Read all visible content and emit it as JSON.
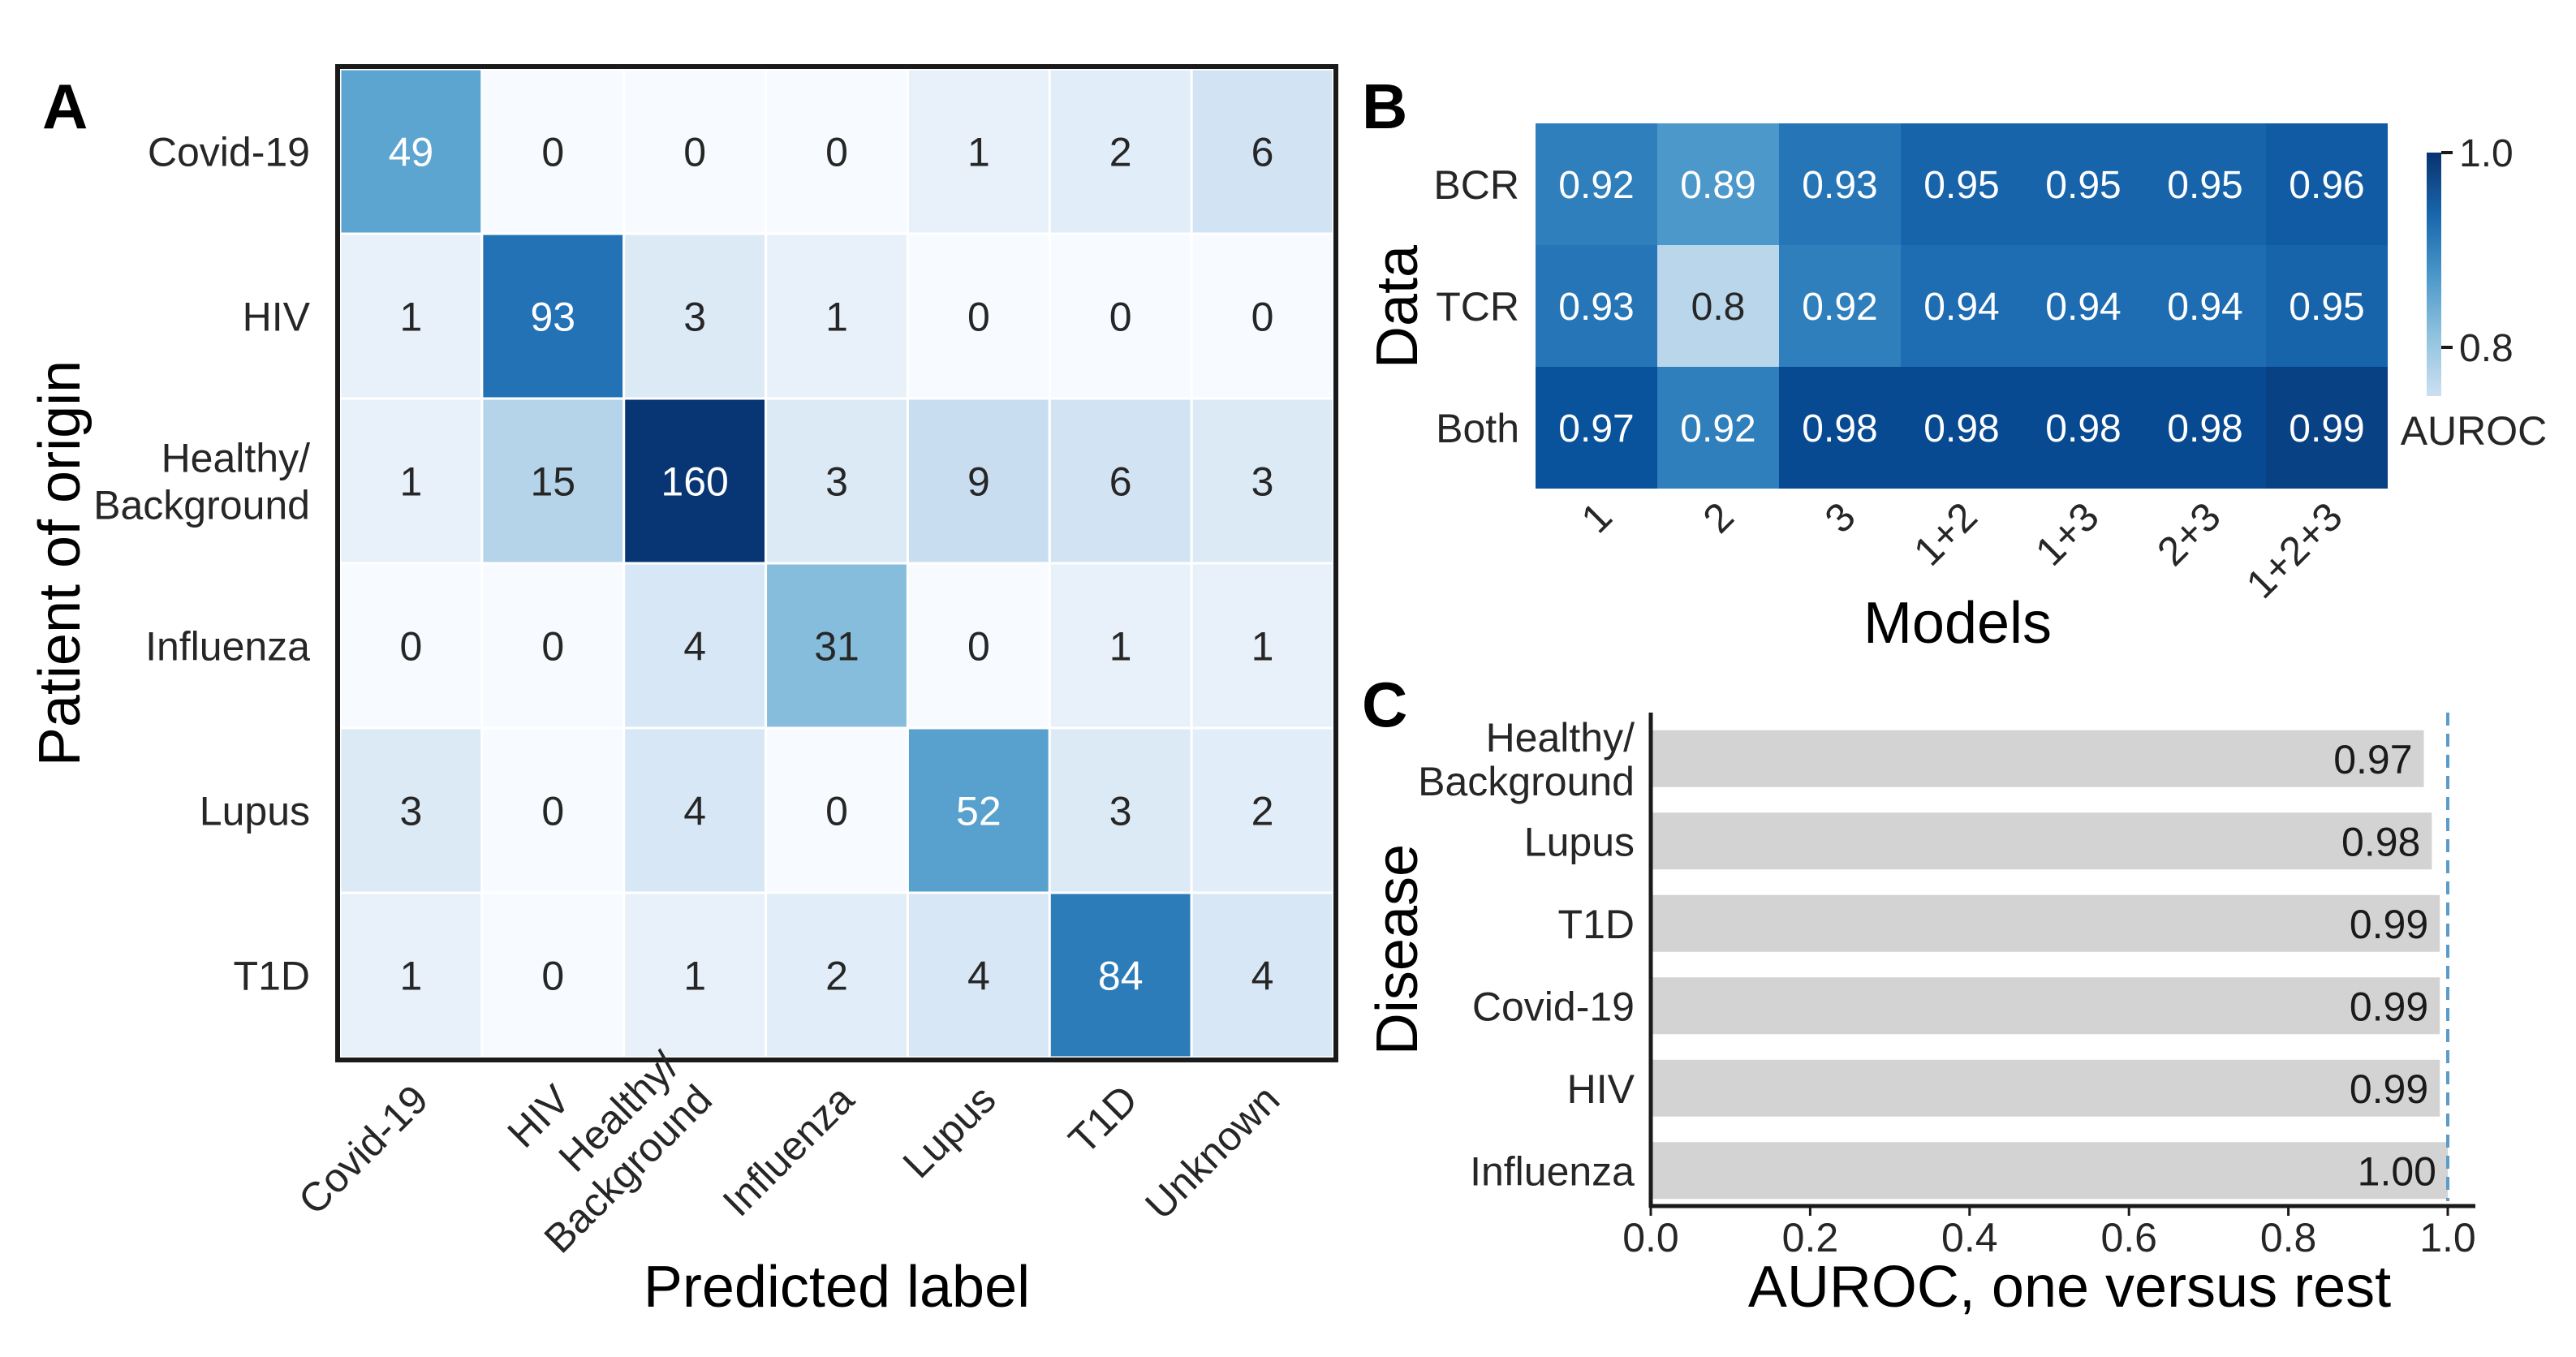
{
  "colors": {
    "cmap": [
      "#f7fbff",
      "#deebf7",
      "#c6dbef",
      "#9ecae1",
      "#6baed6",
      "#4292c6",
      "#2171b5",
      "#08519c",
      "#08306b"
    ],
    "bar_fill": "#d3d3d3",
    "reference_line": "#5b9bc9",
    "text_dark": "#262626",
    "frame": "#1a1a1a"
  },
  "panels": {
    "a": "A",
    "b": "B",
    "c": "C"
  },
  "chart_data": [
    {
      "id": "A",
      "type": "heatmap",
      "title": "",
      "xlabel": "Predicted label",
      "ylabel": "Patient of origin",
      "x_categories": [
        "Covid-19",
        "HIV",
        "Healthy/\nBackground",
        "Influenza",
        "Lupus",
        "T1D",
        "Unknown"
      ],
      "y_categories": [
        "Covid-19",
        "HIV",
        "Healthy/\nBackground",
        "Influenza",
        "Lupus",
        "T1D"
      ],
      "values": [
        [
          49,
          0,
          0,
          0,
          1,
          2,
          6
        ],
        [
          1,
          93,
          3,
          1,
          0,
          0,
          0
        ],
        [
          1,
          15,
          160,
          3,
          9,
          6,
          3
        ],
        [
          0,
          0,
          4,
          31,
          0,
          1,
          1
        ],
        [
          3,
          0,
          4,
          0,
          52,
          3,
          2
        ],
        [
          1,
          0,
          1,
          2,
          4,
          84,
          4
        ]
      ],
      "vmin": 0,
      "vmax": 160
    },
    {
      "id": "B",
      "type": "heatmap",
      "xlabel": "Models",
      "ylabel": "Data",
      "x_categories": [
        "1",
        "2",
        "3",
        "1+2",
        "1+3",
        "2+3",
        "1+2+3"
      ],
      "y_categories": [
        "BCR",
        "TCR",
        "Both"
      ],
      "values": [
        [
          "0.92",
          "0.89",
          "0.93",
          "0.95",
          "0.95",
          "0.95",
          "0.96"
        ],
        [
          "0.93",
          "0.8",
          "0.92",
          "0.94",
          "0.94",
          "0.94",
          "0.95"
        ],
        [
          "0.97",
          "0.92",
          "0.98",
          "0.98",
          "0.98",
          "0.98",
          "0.99"
        ]
      ],
      "vmin": 0.75,
      "vmax": 1.0,
      "colorbar": {
        "label": "AUROC",
        "ticks": [
          "1.0",
          "0.8"
        ],
        "tick_values": [
          1.0,
          0.8
        ]
      }
    },
    {
      "id": "C",
      "type": "bar",
      "orientation": "horizontal",
      "xlabel": "AUROC, one versus rest",
      "ylabel": "Disease",
      "categories": [
        "Healthy/\nBackground",
        "Lupus",
        "T1D",
        "Covid-19",
        "HIV",
        "Influenza"
      ],
      "values": [
        0.97,
        0.98,
        0.99,
        0.99,
        0.99,
        1.0
      ],
      "value_labels": [
        "0.97",
        "0.98",
        "0.99",
        "0.99",
        "0.99",
        "1.00"
      ],
      "xlim": [
        0.0,
        1.0
      ],
      "xticks": [
        "0.0",
        "0.2",
        "0.4",
        "0.6",
        "0.8",
        "1.0"
      ],
      "xtick_values": [
        0.0,
        0.2,
        0.4,
        0.6,
        0.8,
        1.0
      ],
      "reference_line": 1.0
    }
  ]
}
